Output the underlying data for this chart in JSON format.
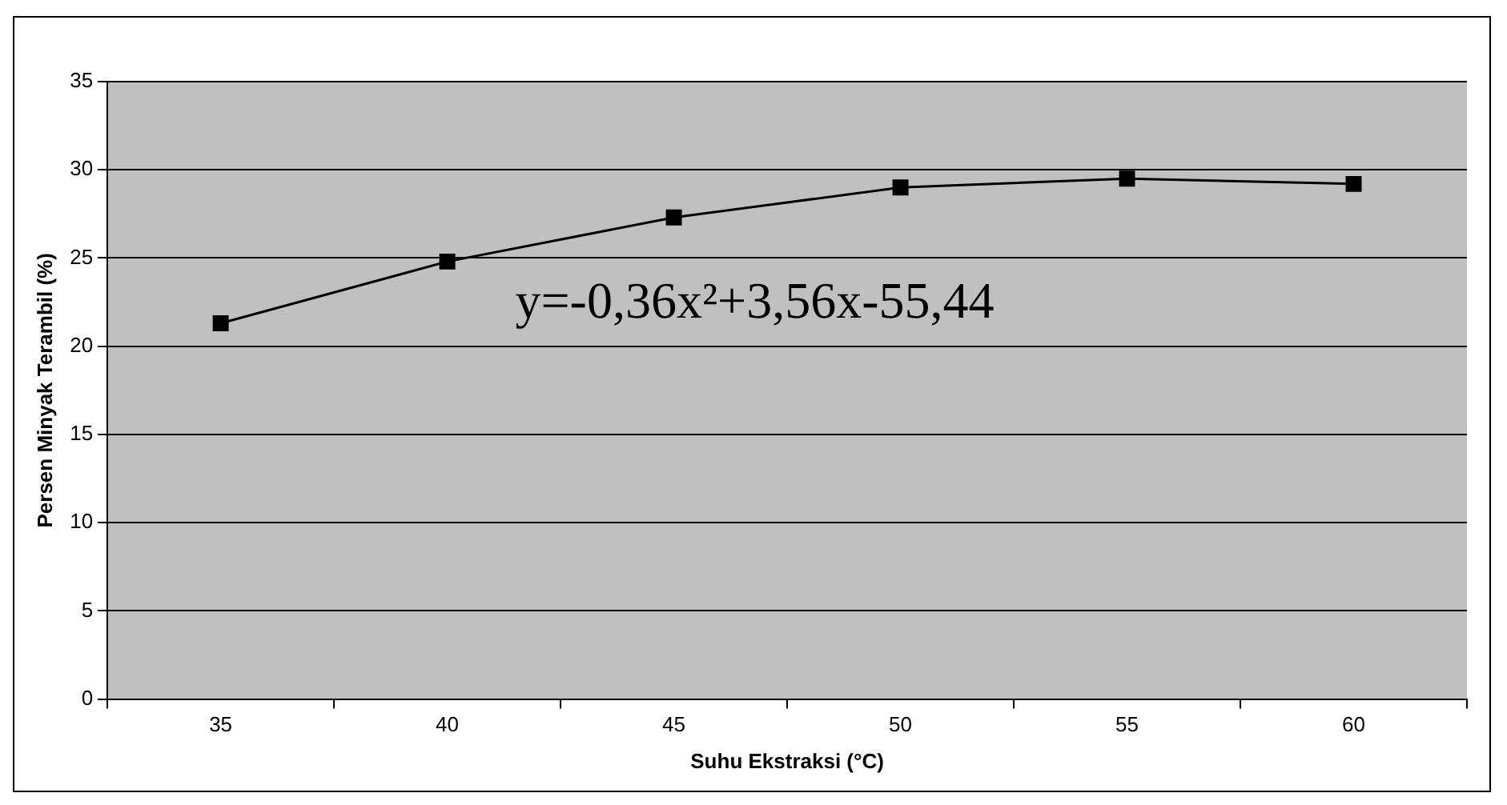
{
  "chart_data": {
    "type": "line",
    "xlabel": "Suhu Ekstraksi (°C)",
    "ylabel": "Persen Minyak Terambil (%)",
    "categories": [
      "35",
      "40",
      "45",
      "50",
      "55",
      "60"
    ],
    "series": [
      {
        "color": "#000000",
        "values": [
          21.3,
          24.8,
          27.3,
          29.0,
          29.5,
          29.2
        ]
      }
    ],
    "ylim": [
      0,
      35
    ],
    "yticks": [
      0,
      5,
      10,
      15,
      20,
      25,
      30,
      35
    ],
    "grid": "y",
    "legend": false,
    "marker": "square",
    "line_style": "solid",
    "annotations": [
      "y=-0,36x²+3,56x-55,44"
    ]
  }
}
